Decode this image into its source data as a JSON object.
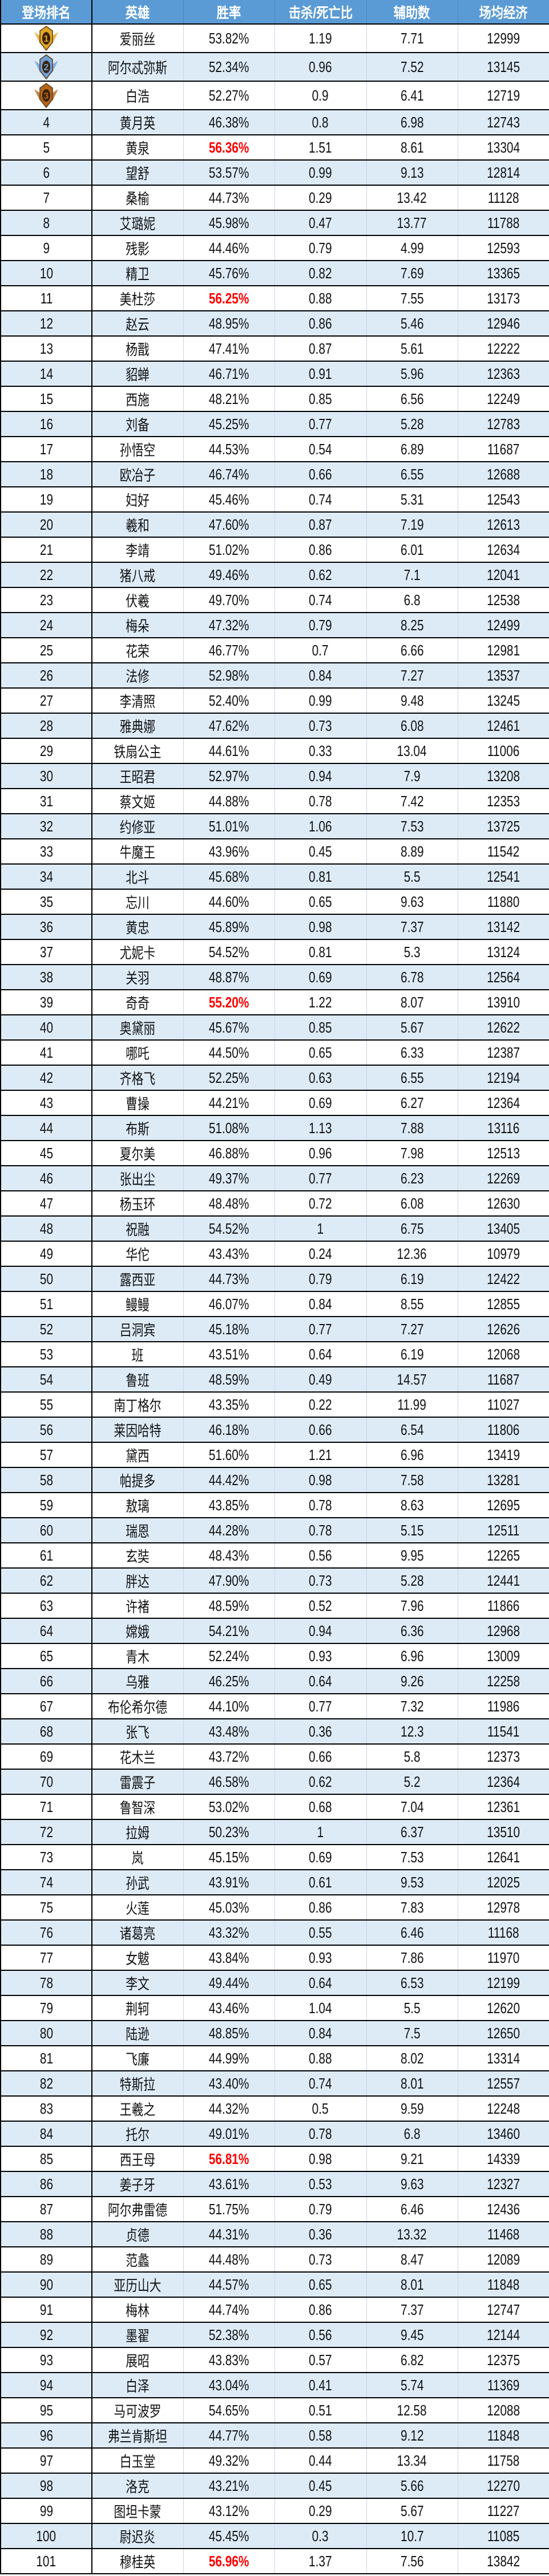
{
  "table": {
    "headers": [
      "登场排名",
      "英雄",
      "胜率",
      "击杀/死亡比",
      "辅助数",
      "场均经济"
    ],
    "header_color": "#5b9bd5",
    "alt_row_color": "#ddebf7",
    "highlight_color": "#ff0000",
    "medal_icons": [
      "gold-medal-icon",
      "silver-medal-icon",
      "bronze-medal-icon"
    ],
    "medal_colors": [
      "#e0a526",
      "#6f9fd8",
      "#b5651d"
    ],
    "highlighted_ranks": [
      5,
      11,
      39,
      85,
      101
    ],
    "rows": [
      [
        "1",
        "爱丽丝",
        "53.82%",
        "1.19",
        "7.71",
        "12999"
      ],
      [
        "2",
        "阿尔忒弥斯",
        "52.34%",
        "0.96",
        "7.52",
        "13145"
      ],
      [
        "3",
        "白浩",
        "52.27%",
        "0.9",
        "6.41",
        "12719"
      ],
      [
        "4",
        "黄月英",
        "46.38%",
        "0.8",
        "6.98",
        "12743"
      ],
      [
        "5",
        "黄泉",
        "56.36%",
        "1.51",
        "8.61",
        "13304"
      ],
      [
        "6",
        "望舒",
        "53.57%",
        "0.99",
        "9.13",
        "12814"
      ],
      [
        "7",
        "桑榆",
        "44.73%",
        "0.29",
        "13.42",
        "11128"
      ],
      [
        "8",
        "艾璐妮",
        "45.98%",
        "0.47",
        "13.77",
        "11788"
      ],
      [
        "9",
        "残影",
        "44.46%",
        "0.79",
        "4.99",
        "12593"
      ],
      [
        "10",
        "精卫",
        "45.76%",
        "0.82",
        "7.69",
        "13365"
      ],
      [
        "11",
        "美杜莎",
        "56.25%",
        "0.88",
        "7.55",
        "13173"
      ],
      [
        "12",
        "赵云",
        "48.95%",
        "0.86",
        "5.46",
        "12946"
      ],
      [
        "13",
        "杨戬",
        "47.41%",
        "0.87",
        "5.61",
        "12222"
      ],
      [
        "14",
        "貂蝉",
        "46.71%",
        "0.91",
        "5.96",
        "12363"
      ],
      [
        "15",
        "西施",
        "48.21%",
        "0.85",
        "6.56",
        "12249"
      ],
      [
        "16",
        "刘备",
        "45.25%",
        "0.77",
        "5.28",
        "12783"
      ],
      [
        "17",
        "孙悟空",
        "44.53%",
        "0.54",
        "6.89",
        "11687"
      ],
      [
        "18",
        "欧冶子",
        "46.74%",
        "0.66",
        "6.55",
        "12688"
      ],
      [
        "19",
        "妇好",
        "45.46%",
        "0.74",
        "5.31",
        "12543"
      ],
      [
        "20",
        "羲和",
        "47.60%",
        "0.87",
        "7.19",
        "12613"
      ],
      [
        "21",
        "李靖",
        "51.02%",
        "0.86",
        "6.01",
        "12634"
      ],
      [
        "22",
        "猪八戒",
        "49.46%",
        "0.62",
        "7.1",
        "12041"
      ],
      [
        "23",
        "伏羲",
        "49.70%",
        "0.74",
        "6.8",
        "12538"
      ],
      [
        "24",
        "梅朵",
        "47.32%",
        "0.79",
        "8.25",
        "12499"
      ],
      [
        "25",
        "花荣",
        "46.77%",
        "0.7",
        "6.66",
        "12981"
      ],
      [
        "26",
        "法修",
        "52.98%",
        "0.84",
        "7.27",
        "13537"
      ],
      [
        "27",
        "李清照",
        "52.40%",
        "0.99",
        "9.48",
        "13245"
      ],
      [
        "28",
        "雅典娜",
        "47.62%",
        "0.73",
        "6.08",
        "12461"
      ],
      [
        "29",
        "铁扇公主",
        "44.61%",
        "0.33",
        "13.04",
        "11006"
      ],
      [
        "30",
        "王昭君",
        "52.97%",
        "0.94",
        "7.9",
        "13208"
      ],
      [
        "31",
        "蔡文姬",
        "44.88%",
        "0.78",
        "7.42",
        "12353"
      ],
      [
        "32",
        "约修亚",
        "51.01%",
        "1.06",
        "7.53",
        "13725"
      ],
      [
        "33",
        "牛魔王",
        "43.96%",
        "0.45",
        "8.89",
        "11542"
      ],
      [
        "34",
        "北斗",
        "45.68%",
        "0.81",
        "5.5",
        "12541"
      ],
      [
        "35",
        "忘川",
        "44.60%",
        "0.65",
        "9.63",
        "11880"
      ],
      [
        "36",
        "黄忠",
        "45.89%",
        "0.98",
        "7.37",
        "13142"
      ],
      [
        "37",
        "尤妮卡",
        "54.52%",
        "0.81",
        "5.3",
        "13124"
      ],
      [
        "38",
        "关羽",
        "48.87%",
        "0.69",
        "6.78",
        "12564"
      ],
      [
        "39",
        "奇奇",
        "55.20%",
        "1.22",
        "8.07",
        "13910"
      ],
      [
        "40",
        "奥黛丽",
        "45.67%",
        "0.85",
        "5.67",
        "12622"
      ],
      [
        "41",
        "哪吒",
        "44.50%",
        "0.65",
        "6.33",
        "12387"
      ],
      [
        "42",
        "齐格飞",
        "52.25%",
        "0.63",
        "6.55",
        "12194"
      ],
      [
        "43",
        "曹操",
        "44.21%",
        "0.69",
        "6.27",
        "12364"
      ],
      [
        "44",
        "布斯",
        "51.08%",
        "1.13",
        "7.88",
        "13116"
      ],
      [
        "45",
        "夏尔美",
        "46.88%",
        "0.96",
        "7.98",
        "12513"
      ],
      [
        "46",
        "张出尘",
        "49.37%",
        "0.77",
        "6.23",
        "12269"
      ],
      [
        "47",
        "杨玉环",
        "48.48%",
        "0.72",
        "6.08",
        "12630"
      ],
      [
        "48",
        "祝融",
        "54.52%",
        "1",
        "6.75",
        "13405"
      ],
      [
        "49",
        "华佗",
        "43.43%",
        "0.24",
        "12.36",
        "10979"
      ],
      [
        "50",
        "露西亚",
        "44.73%",
        "0.79",
        "6.19",
        "12422"
      ],
      [
        "51",
        "鳗鳗",
        "46.07%",
        "0.84",
        "8.55",
        "12855"
      ],
      [
        "52",
        "吕洞宾",
        "45.18%",
        "0.77",
        "7.27",
        "12626"
      ],
      [
        "53",
        "班",
        "43.51%",
        "0.64",
        "6.19",
        "12068"
      ],
      [
        "54",
        "鲁班",
        "48.59%",
        "0.49",
        "14.57",
        "11687"
      ],
      [
        "55",
        "南丁格尔",
        "43.35%",
        "0.22",
        "11.99",
        "11027"
      ],
      [
        "56",
        "莱因哈特",
        "46.18%",
        "0.66",
        "6.54",
        "11806"
      ],
      [
        "57",
        "黛西",
        "51.60%",
        "1.21",
        "6.96",
        "13419"
      ],
      [
        "58",
        "帕提多",
        "44.42%",
        "0.98",
        "7.58",
        "13281"
      ],
      [
        "59",
        "敖璃",
        "43.85%",
        "0.78",
        "8.63",
        "12695"
      ],
      [
        "60",
        "瑞恩",
        "44.28%",
        "0.78",
        "5.15",
        "12511"
      ],
      [
        "61",
        "玄奘",
        "48.43%",
        "0.56",
        "9.95",
        "12265"
      ],
      [
        "62",
        "胖达",
        "47.90%",
        "0.73",
        "5.28",
        "12441"
      ],
      [
        "63",
        "许褚",
        "48.59%",
        "0.52",
        "7.96",
        "11866"
      ],
      [
        "64",
        "嫦娥",
        "54.21%",
        "0.94",
        "6.36",
        "12968"
      ],
      [
        "65",
        "青木",
        "52.24%",
        "0.93",
        "6.96",
        "13009"
      ],
      [
        "66",
        "乌雅",
        "46.25%",
        "0.64",
        "9.26",
        "12258"
      ],
      [
        "67",
        "布伦希尔德",
        "44.10%",
        "0.77",
        "7.32",
        "11986"
      ],
      [
        "68",
        "张飞",
        "43.48%",
        "0.36",
        "12.3",
        "11541"
      ],
      [
        "69",
        "花木兰",
        "43.72%",
        "0.66",
        "5.8",
        "12373"
      ],
      [
        "70",
        "雷震子",
        "46.58%",
        "0.62",
        "5.2",
        "12364"
      ],
      [
        "71",
        "鲁智深",
        "53.02%",
        "0.68",
        "7.04",
        "12361"
      ],
      [
        "72",
        "拉姆",
        "50.23%",
        "1",
        "6.37",
        "13510"
      ],
      [
        "73",
        "岚",
        "45.15%",
        "0.69",
        "7.53",
        "12641"
      ],
      [
        "74",
        "孙武",
        "43.91%",
        "0.61",
        "9.53",
        "12025"
      ],
      [
        "75",
        "火莲",
        "45.03%",
        "0.86",
        "7.83",
        "12978"
      ],
      [
        "76",
        "诸葛亮",
        "43.32%",
        "0.55",
        "6.46",
        "11168"
      ],
      [
        "77",
        "女魃",
        "43.84%",
        "0.93",
        "7.86",
        "11970"
      ],
      [
        "78",
        "李文",
        "49.44%",
        "0.64",
        "6.53",
        "12199"
      ],
      [
        "79",
        "荆轲",
        "43.46%",
        "1.04",
        "5.5",
        "12620"
      ],
      [
        "80",
        "陆逊",
        "48.85%",
        "0.84",
        "7.5",
        "12650"
      ],
      [
        "81",
        "飞廉",
        "44.99%",
        "0.88",
        "8.02",
        "13314"
      ],
      [
        "82",
        "特斯拉",
        "43.40%",
        "0.74",
        "8.01",
        "12557"
      ],
      [
        "83",
        "王羲之",
        "44.32%",
        "0.5",
        "9.59",
        "12248"
      ],
      [
        "84",
        "托尔",
        "49.01%",
        "0.78",
        "6.8",
        "13460"
      ],
      [
        "85",
        "西王母",
        "56.81%",
        "0.98",
        "9.21",
        "14339"
      ],
      [
        "86",
        "姜子牙",
        "43.61%",
        "0.53",
        "9.63",
        "12327"
      ],
      [
        "87",
        "阿尔弗雷德",
        "51.75%",
        "0.79",
        "6.46",
        "12436"
      ],
      [
        "88",
        "贞德",
        "44.31%",
        "0.36",
        "13.32",
        "11468"
      ],
      [
        "89",
        "范蠡",
        "44.48%",
        "0.73",
        "8.47",
        "12089"
      ],
      [
        "90",
        "亚历山大",
        "44.57%",
        "0.65",
        "8.01",
        "11848"
      ],
      [
        "91",
        "梅林",
        "44.74%",
        "0.86",
        "7.37",
        "12747"
      ],
      [
        "92",
        "墨翟",
        "52.38%",
        "0.56",
        "9.45",
        "12144"
      ],
      [
        "93",
        "展昭",
        "43.83%",
        "0.57",
        "6.82",
        "12375"
      ],
      [
        "94",
        "白泽",
        "43.04%",
        "0.41",
        "5.74",
        "11369"
      ],
      [
        "95",
        "马可波罗",
        "54.65%",
        "0.51",
        "12.58",
        "12088"
      ],
      [
        "96",
        "弗兰肯斯坦",
        "44.77%",
        "0.58",
        "9.12",
        "11848"
      ],
      [
        "97",
        "白玉堂",
        "49.32%",
        "0.44",
        "13.34",
        "11758"
      ],
      [
        "98",
        "洛克",
        "43.21%",
        "0.45",
        "5.66",
        "12270"
      ],
      [
        "99",
        "图坦卡蒙",
        "43.12%",
        "0.29",
        "5.67",
        "11227"
      ],
      [
        "100",
        "尉迟炎",
        "45.45%",
        "0.3",
        "10.7",
        "11085"
      ],
      [
        "101",
        "穆桂英",
        "56.96%",
        "1.37",
        "7.56",
        "13842"
      ]
    ]
  }
}
